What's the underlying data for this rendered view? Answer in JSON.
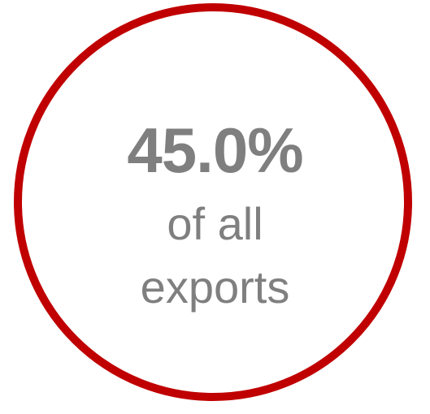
{
  "stat": {
    "value": "45.0%",
    "caption_line1": "of all",
    "caption_line2": "exports"
  },
  "colors": {
    "ring": "#c00000",
    "text": "#7f7f7f"
  }
}
